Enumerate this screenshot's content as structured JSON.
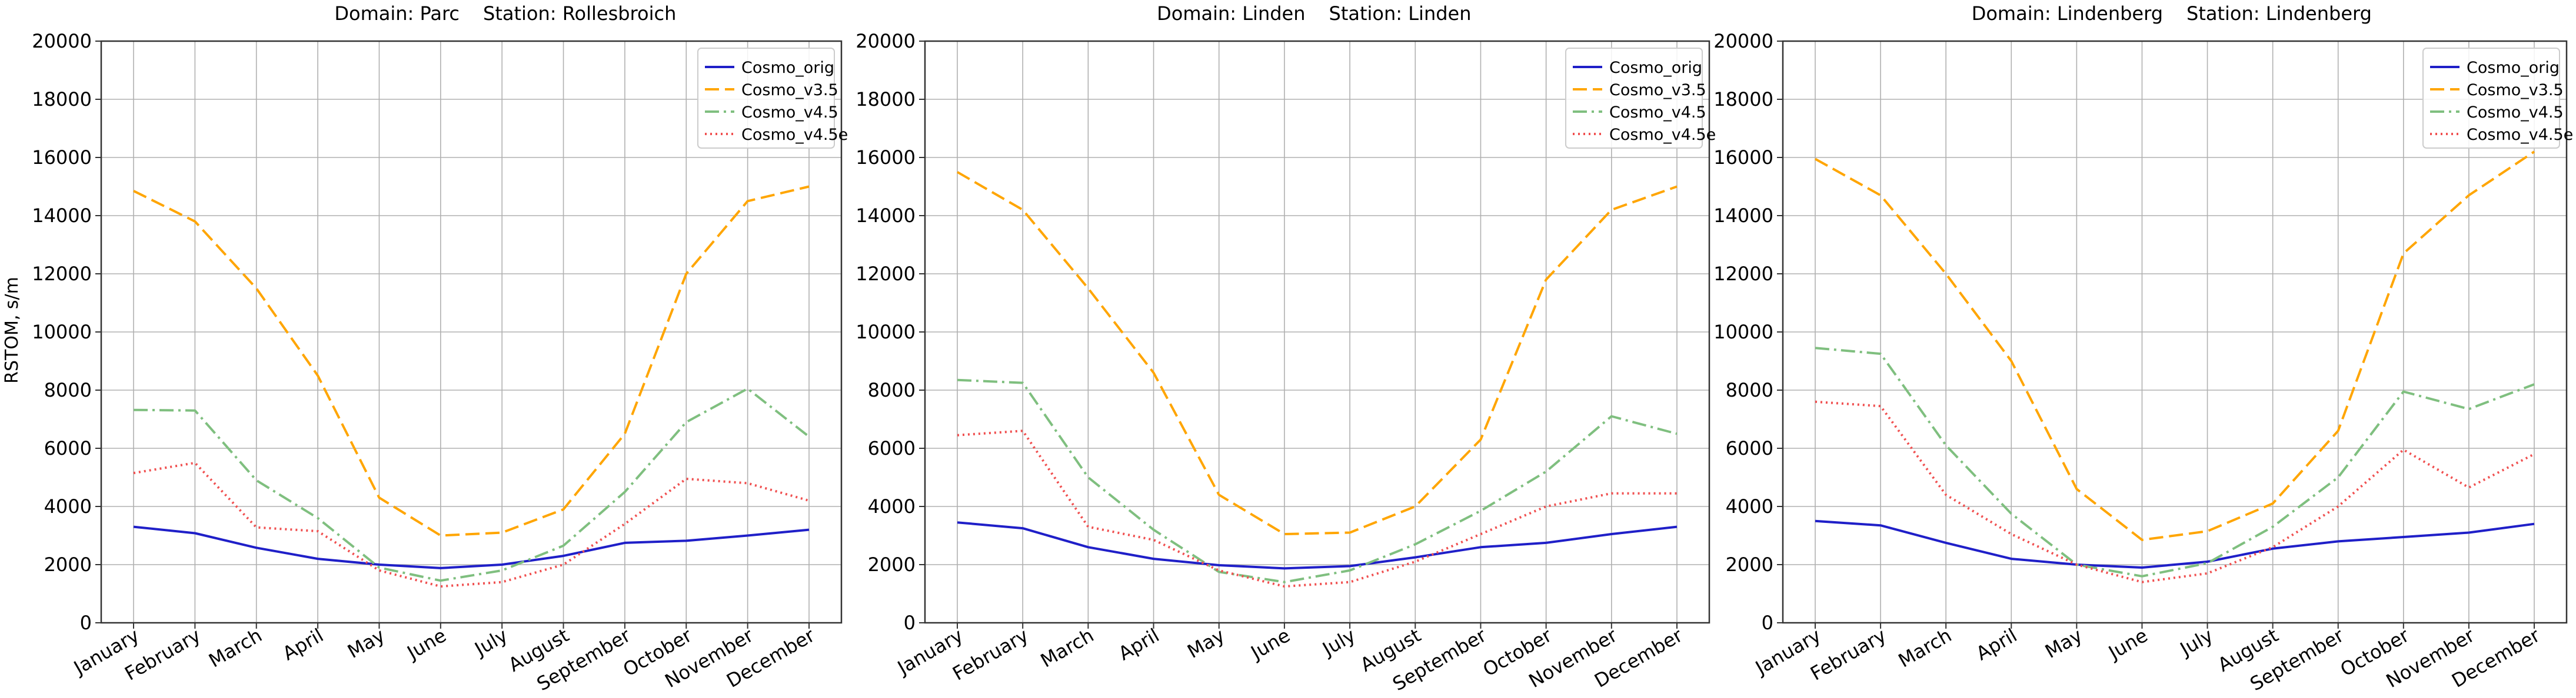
{
  "figure": {
    "ylabel": "RSTOM, s/m"
  },
  "series_styles": [
    {
      "name": "Cosmo_orig",
      "color": "#1f1fc8",
      "dash": "none",
      "opacity": 1
    },
    {
      "name": "Cosmo_v3.5",
      "color": "#ffa500",
      "dash": "24,10",
      "opacity": 1
    },
    {
      "name": "Cosmo_v4.5",
      "color": "#7fbf7f",
      "dash": "24,8,4,8",
      "opacity": 1
    },
    {
      "name": "Cosmo_v4.5e",
      "color": "#f05050",
      "dash": "3,6",
      "opacity": 1
    }
  ],
  "chart_data": [
    {
      "type": "line",
      "title_domain": "Domain: Parc",
      "title_station": "Station: Rollesbroich",
      "xlabel": "",
      "ylabel": "RSTOM, s/m",
      "ylim": [
        0,
        20000
      ],
      "yticks": [
        0,
        2000,
        4000,
        6000,
        8000,
        10000,
        12000,
        14000,
        16000,
        18000,
        20000
      ],
      "grid": true,
      "legend": "top-right",
      "categories": [
        "January",
        "February",
        "March",
        "April",
        "May",
        "June",
        "July",
        "August",
        "September",
        "October",
        "November",
        "December"
      ],
      "series": [
        {
          "name": "Cosmo_orig",
          "values": [
            3300,
            3080,
            2580,
            2200,
            2000,
            1880,
            2000,
            2300,
            2750,
            2820,
            3000,
            3200
          ]
        },
        {
          "name": "Cosmo_v3.5",
          "values": [
            14850,
            13800,
            11500,
            8500,
            4300,
            3000,
            3100,
            3900,
            6500,
            12000,
            14500,
            15000
          ]
        },
        {
          "name": "Cosmo_v4.5",
          "values": [
            7320,
            7300,
            4900,
            3600,
            1900,
            1450,
            1800,
            2650,
            4500,
            6900,
            8050,
            6400
          ]
        },
        {
          "name": "Cosmo_v4.5e",
          "values": [
            5150,
            5500,
            3280,
            3150,
            1800,
            1250,
            1400,
            2000,
            3400,
            4950,
            4800,
            4200
          ]
        }
      ]
    },
    {
      "type": "line",
      "title_domain": "Domain: Linden",
      "title_station": "Station: Linden",
      "xlabel": "",
      "ylabel": "",
      "ylim": [
        0,
        20000
      ],
      "yticks": [
        0,
        2000,
        4000,
        6000,
        8000,
        10000,
        12000,
        14000,
        16000,
        18000,
        20000
      ],
      "grid": true,
      "legend": "top-right",
      "categories": [
        "January",
        "February",
        "March",
        "April",
        "May",
        "June",
        "July",
        "August",
        "September",
        "October",
        "November",
        "December"
      ],
      "series": [
        {
          "name": "Cosmo_orig",
          "values": [
            3450,
            3250,
            2600,
            2200,
            1980,
            1870,
            1950,
            2250,
            2600,
            2750,
            3050,
            3300
          ]
        },
        {
          "name": "Cosmo_v3.5",
          "values": [
            15500,
            14200,
            11500,
            8600,
            4400,
            3050,
            3100,
            4000,
            6300,
            11800,
            14200,
            15000
          ]
        },
        {
          "name": "Cosmo_v4.5",
          "values": [
            8350,
            8250,
            5000,
            3200,
            1750,
            1400,
            1800,
            2700,
            3850,
            5200,
            7100,
            6500
          ]
        },
        {
          "name": "Cosmo_v4.5e",
          "values": [
            6450,
            6600,
            3300,
            2850,
            1800,
            1250,
            1400,
            2100,
            3050,
            4000,
            4450,
            4450
          ]
        }
      ]
    },
    {
      "type": "line",
      "title_domain": "Domain: Lindenberg",
      "title_station": "Station: Lindenberg",
      "xlabel": "",
      "ylabel": "",
      "ylim": [
        0,
        20000
      ],
      "yticks": [
        0,
        2000,
        4000,
        6000,
        8000,
        10000,
        12000,
        14000,
        16000,
        18000,
        20000
      ],
      "grid": true,
      "legend": "top-right",
      "categories": [
        "January",
        "February",
        "March",
        "April",
        "May",
        "June",
        "July",
        "August",
        "September",
        "October",
        "November",
        "December"
      ],
      "series": [
        {
          "name": "Cosmo_orig",
          "values": [
            3500,
            3350,
            2750,
            2200,
            2000,
            1900,
            2100,
            2550,
            2800,
            2950,
            3100,
            3400
          ]
        },
        {
          "name": "Cosmo_v3.5",
          "values": [
            15950,
            14700,
            12000,
            9000,
            4600,
            2850,
            3150,
            4100,
            6600,
            12700,
            14700,
            16200
          ]
        },
        {
          "name": "Cosmo_v4.5",
          "values": [
            9450,
            9250,
            6100,
            3750,
            2000,
            1600,
            2050,
            3300,
            5000,
            7950,
            7350,
            8200
          ]
        },
        {
          "name": "Cosmo_v4.5e",
          "values": [
            7600,
            7450,
            4400,
            3050,
            2000,
            1400,
            1700,
            2600,
            4000,
            5950,
            4650,
            5800
          ]
        }
      ]
    }
  ]
}
